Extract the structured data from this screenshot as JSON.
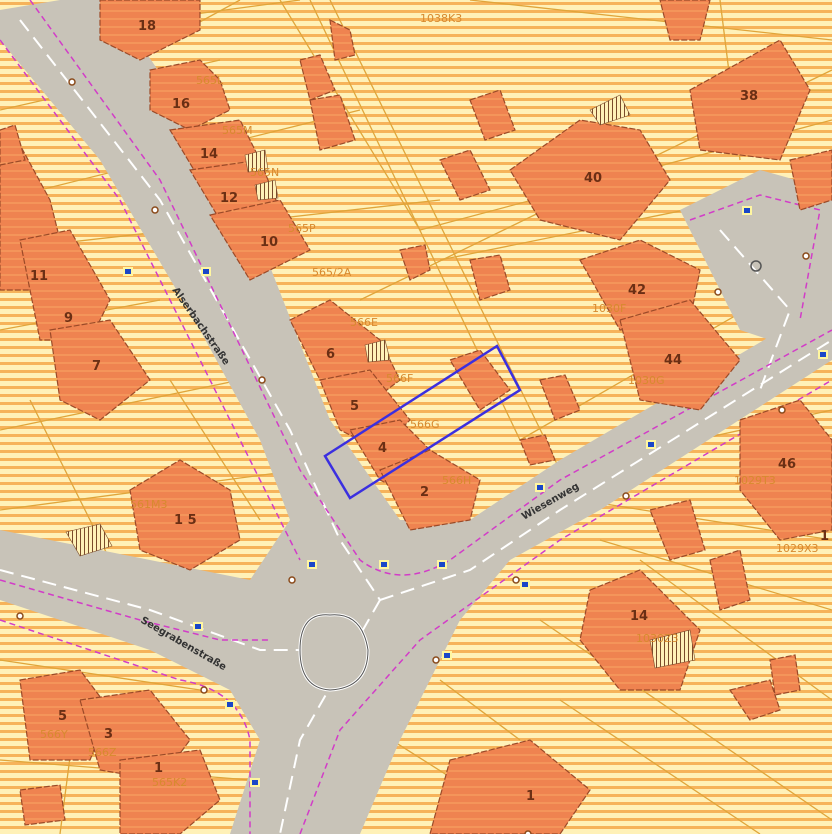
{
  "colors": {
    "parcel_background": "#fff1b8",
    "parcel_hatch": "#f6b35a",
    "building_fill": "#ef8350",
    "building_outline": "#9b4a28",
    "road_fill": "#c8c3b8",
    "road_centerline": "#ffffff",
    "road_boundary_dashed": "#d23cc8",
    "parcel_lines": "#e0a53a",
    "selection_outline": "#3b2fe0",
    "marker_fill": "#1a47c8",
    "marker_bg": "#fff6a0"
  },
  "icons": {
    "address_marker": "address-marker-icon",
    "roundabout": "roundabout-island-icon"
  },
  "streets": [
    {
      "id": "northwest",
      "label": "Alserbachstraße"
    },
    {
      "id": "southwest",
      "label": "Seegrabenstraße"
    },
    {
      "id": "east",
      "label": "Wiesenweg"
    }
  ],
  "house_numbers": [
    "18",
    "16",
    "14",
    "12",
    "10",
    "11",
    "9",
    "7",
    "6",
    "5",
    "4",
    "2",
    "1 5",
    "40",
    "38",
    "42",
    "44",
    "46",
    "14",
    "5",
    "3",
    "1",
    "1",
    "1"
  ],
  "parcel_labels": [
    "1038K3",
    "565L",
    "565M",
    "565N",
    "565P",
    "565/2A",
    "566E",
    "566F",
    "566G",
    "566H",
    "561M3",
    "1030F",
    "1030G",
    "1029T3",
    "1029X3",
    "1030Z3",
    "566Y",
    "566Z",
    "565K2"
  ]
}
